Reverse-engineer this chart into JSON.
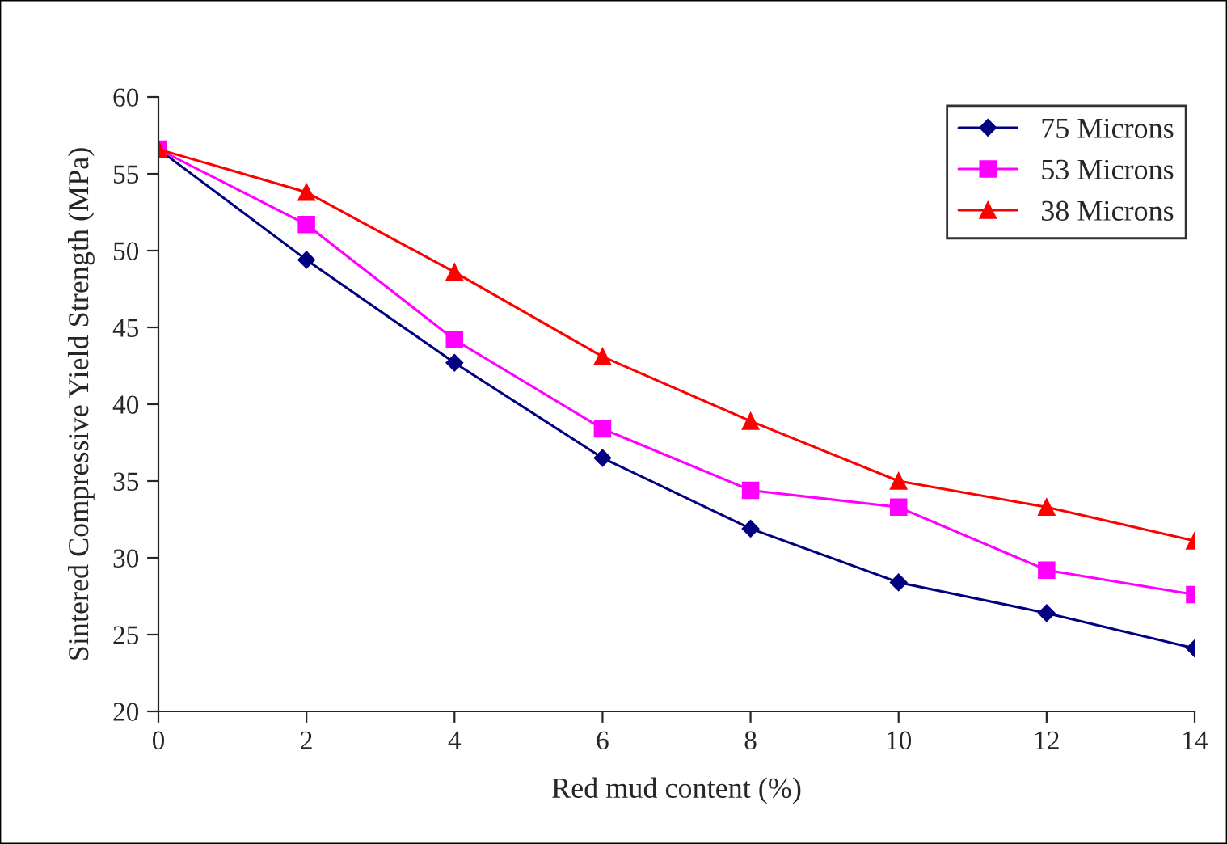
{
  "chart_data": {
    "type": "line",
    "xlabel": "Red mud content (%)",
    "ylabel": "Sintered Compressive Yield Strength (MPa)",
    "x": [
      0,
      2,
      4,
      6,
      8,
      10,
      12,
      14
    ],
    "series": [
      {
        "name": "75 Microns",
        "color": "#000080",
        "marker": "diamond",
        "values": [
          56.6,
          49.4,
          42.7,
          36.5,
          31.9,
          28.4,
          26.4,
          24.1
        ]
      },
      {
        "name": "53 Microns",
        "color": "#ff00ff",
        "marker": "square",
        "values": [
          56.6,
          51.7,
          44.2,
          38.4,
          34.4,
          33.3,
          29.2,
          27.6
        ]
      },
      {
        "name": "38 Microns",
        "color": "#ff0000",
        "marker": "triangle",
        "values": [
          56.6,
          53.8,
          48.6,
          43.1,
          38.9,
          35.0,
          33.3,
          31.1
        ]
      }
    ],
    "xlim": [
      0,
      14
    ],
    "xticks": [
      0,
      2,
      4,
      6,
      8,
      10,
      12,
      14
    ],
    "ylim": [
      20,
      60
    ],
    "yticks": [
      20,
      25,
      30,
      35,
      40,
      45,
      50,
      55,
      60
    ],
    "grid": false,
    "legend": "top right",
    "line_style": "solid"
  }
}
